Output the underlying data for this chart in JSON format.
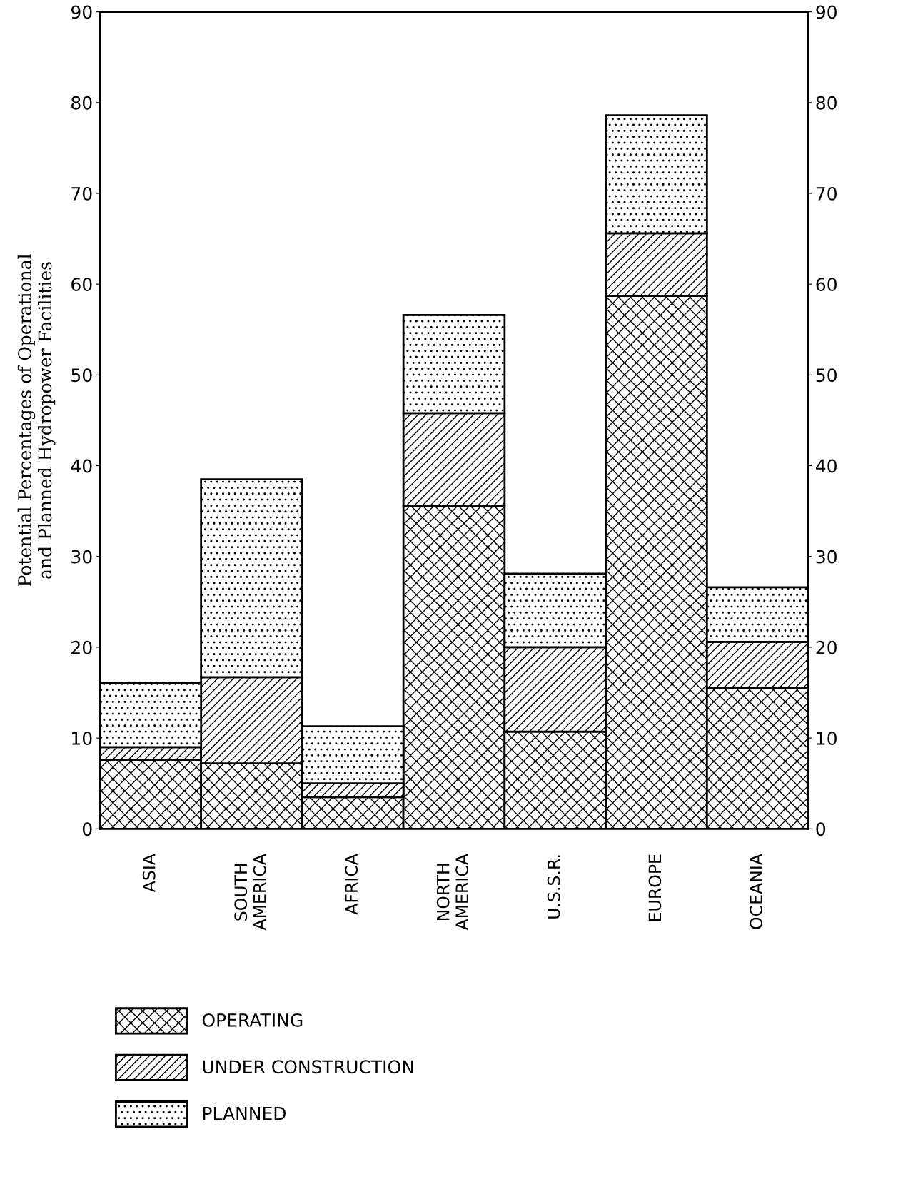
{
  "chart_data": {
    "type": "bar",
    "stacked": true,
    "ylabel": "Potential Percentages of Operational\nand Planned Hydropower Facilities",
    "categories": [
      "ASIA",
      "SOUTH\nAMERICA",
      "AFRICA",
      "NORTH\nAMERICA",
      "U.S.S.R.",
      "EUROPE",
      "OCEANIA"
    ],
    "series": [
      {
        "name": "OPERATING",
        "color": "#000000",
        "values": [
          7.6,
          7.2,
          3.5,
          35.6,
          10.7,
          58.7,
          15.5
        ]
      },
      {
        "name": "UNDER CONSTRUCTION",
        "color": "#000000",
        "values": [
          1.4,
          9.5,
          1.5,
          10.2,
          9.3,
          6.9,
          5.1
        ]
      },
      {
        "name": "PLANNED",
        "color": "#000000",
        "values": [
          7.1,
          21.8,
          6.3,
          10.8,
          8.1,
          13.0,
          6.0
        ]
      }
    ],
    "ylim": [
      0,
      90
    ],
    "yticks": [
      0,
      10,
      20,
      30,
      40,
      50,
      60,
      70,
      80,
      90
    ],
    "y2lim": [
      0,
      90
    ],
    "y2ticks": [
      0,
      10,
      20,
      30,
      40,
      50,
      60,
      70,
      80,
      90
    ],
    "legend": "bottom",
    "grid": false
  }
}
